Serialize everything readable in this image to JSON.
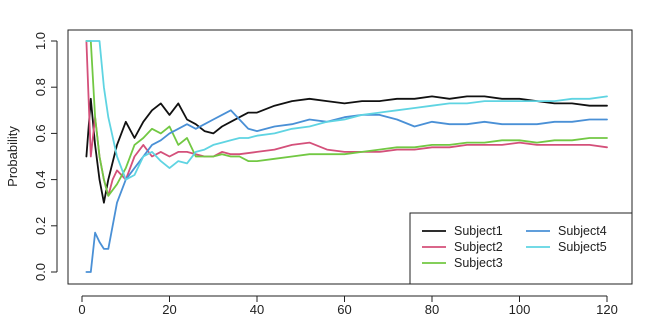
{
  "chart_data": {
    "type": "line",
    "title": "",
    "xlabel": "",
    "ylabel": "Probability",
    "xlim": [
      0,
      120
    ],
    "ylim": [
      0,
      1
    ],
    "xticks": [
      0,
      20,
      40,
      60,
      80,
      100,
      120
    ],
    "yticks": [
      0.0,
      0.2,
      0.4,
      0.6,
      0.8,
      1.0
    ],
    "ytick_labels": [
      "0.0",
      "0.2",
      "0.4",
      "0.6",
      "0.8",
      "1.0"
    ],
    "grid": false,
    "legend_position": "bottom-right",
    "series": [
      {
        "name": "Subject1",
        "color": "#111111",
        "x": [
          1,
          2,
          3,
          4,
          5,
          6,
          8,
          10,
          12,
          14,
          16,
          18,
          20,
          22,
          24,
          26,
          28,
          30,
          32,
          34,
          36,
          38,
          40,
          44,
          48,
          52,
          56,
          60,
          64,
          68,
          72,
          76,
          80,
          84,
          88,
          92,
          96,
          100,
          104,
          108,
          112,
          116,
          120
        ],
        "y": [
          0.5,
          0.75,
          0.55,
          0.4,
          0.3,
          0.4,
          0.55,
          0.65,
          0.58,
          0.65,
          0.7,
          0.73,
          0.68,
          0.73,
          0.66,
          0.64,
          0.61,
          0.6,
          0.63,
          0.65,
          0.67,
          0.69,
          0.69,
          0.72,
          0.74,
          0.75,
          0.74,
          0.73,
          0.74,
          0.74,
          0.75,
          0.75,
          0.76,
          0.75,
          0.76,
          0.76,
          0.75,
          0.75,
          0.74,
          0.73,
          0.73,
          0.72,
          0.72
        ]
      },
      {
        "name": "Subject2",
        "color": "#d4507a",
        "x": [
          1,
          2,
          3,
          4,
          5,
          6,
          7,
          8,
          10,
          12,
          14,
          16,
          18,
          20,
          22,
          24,
          26,
          28,
          30,
          32,
          34,
          36,
          40,
          44,
          48,
          52,
          56,
          60,
          64,
          68,
          72,
          76,
          80,
          84,
          88,
          92,
          96,
          100,
          104,
          108,
          112,
          116,
          120
        ],
        "y": [
          1.0,
          0.5,
          0.67,
          0.5,
          0.4,
          0.33,
          0.4,
          0.44,
          0.4,
          0.5,
          0.55,
          0.5,
          0.52,
          0.5,
          0.52,
          0.52,
          0.51,
          0.5,
          0.5,
          0.52,
          0.51,
          0.51,
          0.52,
          0.53,
          0.55,
          0.56,
          0.53,
          0.52,
          0.52,
          0.52,
          0.53,
          0.53,
          0.54,
          0.54,
          0.55,
          0.55,
          0.55,
          0.56,
          0.55,
          0.55,
          0.55,
          0.55,
          0.54
        ]
      },
      {
        "name": "Subject3",
        "color": "#72c843",
        "x": [
          1,
          2,
          3,
          4,
          5,
          6,
          8,
          10,
          12,
          14,
          16,
          18,
          20,
          22,
          24,
          26,
          28,
          30,
          32,
          34,
          36,
          38,
          40,
          44,
          48,
          52,
          56,
          60,
          64,
          68,
          72,
          76,
          80,
          84,
          88,
          92,
          96,
          100,
          104,
          108,
          112,
          116,
          120
        ],
        "y": [
          1.0,
          1.0,
          0.67,
          0.5,
          0.4,
          0.33,
          0.38,
          0.45,
          0.55,
          0.58,
          0.62,
          0.6,
          0.63,
          0.55,
          0.58,
          0.5,
          0.5,
          0.5,
          0.51,
          0.5,
          0.5,
          0.48,
          0.48,
          0.49,
          0.5,
          0.51,
          0.51,
          0.51,
          0.52,
          0.53,
          0.54,
          0.54,
          0.55,
          0.55,
          0.56,
          0.56,
          0.57,
          0.57,
          0.56,
          0.57,
          0.57,
          0.58,
          0.58
        ]
      },
      {
        "name": "Subject4",
        "color": "#4a90d6",
        "x": [
          1,
          2,
          3,
          4,
          5,
          6,
          8,
          10,
          12,
          14,
          16,
          18,
          20,
          22,
          24,
          26,
          28,
          30,
          32,
          34,
          36,
          38,
          40,
          44,
          48,
          52,
          56,
          60,
          64,
          68,
          72,
          76,
          80,
          84,
          88,
          92,
          96,
          100,
          104,
          108,
          112,
          116,
          120
        ],
        "y": [
          0.0,
          0.0,
          0.17,
          0.13,
          0.1,
          0.1,
          0.3,
          0.4,
          0.45,
          0.5,
          0.55,
          0.57,
          0.6,
          0.62,
          0.64,
          0.62,
          0.64,
          0.66,
          0.68,
          0.7,
          0.66,
          0.62,
          0.61,
          0.63,
          0.64,
          0.66,
          0.65,
          0.67,
          0.68,
          0.68,
          0.66,
          0.63,
          0.65,
          0.64,
          0.64,
          0.65,
          0.64,
          0.64,
          0.64,
          0.65,
          0.65,
          0.66,
          0.66
        ]
      },
      {
        "name": "Subject5",
        "color": "#5fd4e2",
        "x": [
          1,
          2,
          3,
          4,
          5,
          6,
          8,
          10,
          12,
          14,
          16,
          18,
          20,
          22,
          24,
          26,
          28,
          30,
          32,
          34,
          36,
          38,
          40,
          44,
          48,
          52,
          56,
          60,
          64,
          68,
          72,
          76,
          80,
          84,
          88,
          92,
          96,
          100,
          104,
          108,
          112,
          116,
          120
        ],
        "y": [
          1.0,
          1.0,
          1.0,
          1.0,
          0.8,
          0.67,
          0.5,
          0.4,
          0.42,
          0.5,
          0.52,
          0.48,
          0.45,
          0.48,
          0.47,
          0.52,
          0.53,
          0.55,
          0.56,
          0.57,
          0.58,
          0.58,
          0.59,
          0.6,
          0.62,
          0.63,
          0.65,
          0.66,
          0.68,
          0.69,
          0.7,
          0.71,
          0.72,
          0.73,
          0.73,
          0.74,
          0.74,
          0.74,
          0.74,
          0.74,
          0.75,
          0.75,
          0.76
        ]
      }
    ]
  }
}
